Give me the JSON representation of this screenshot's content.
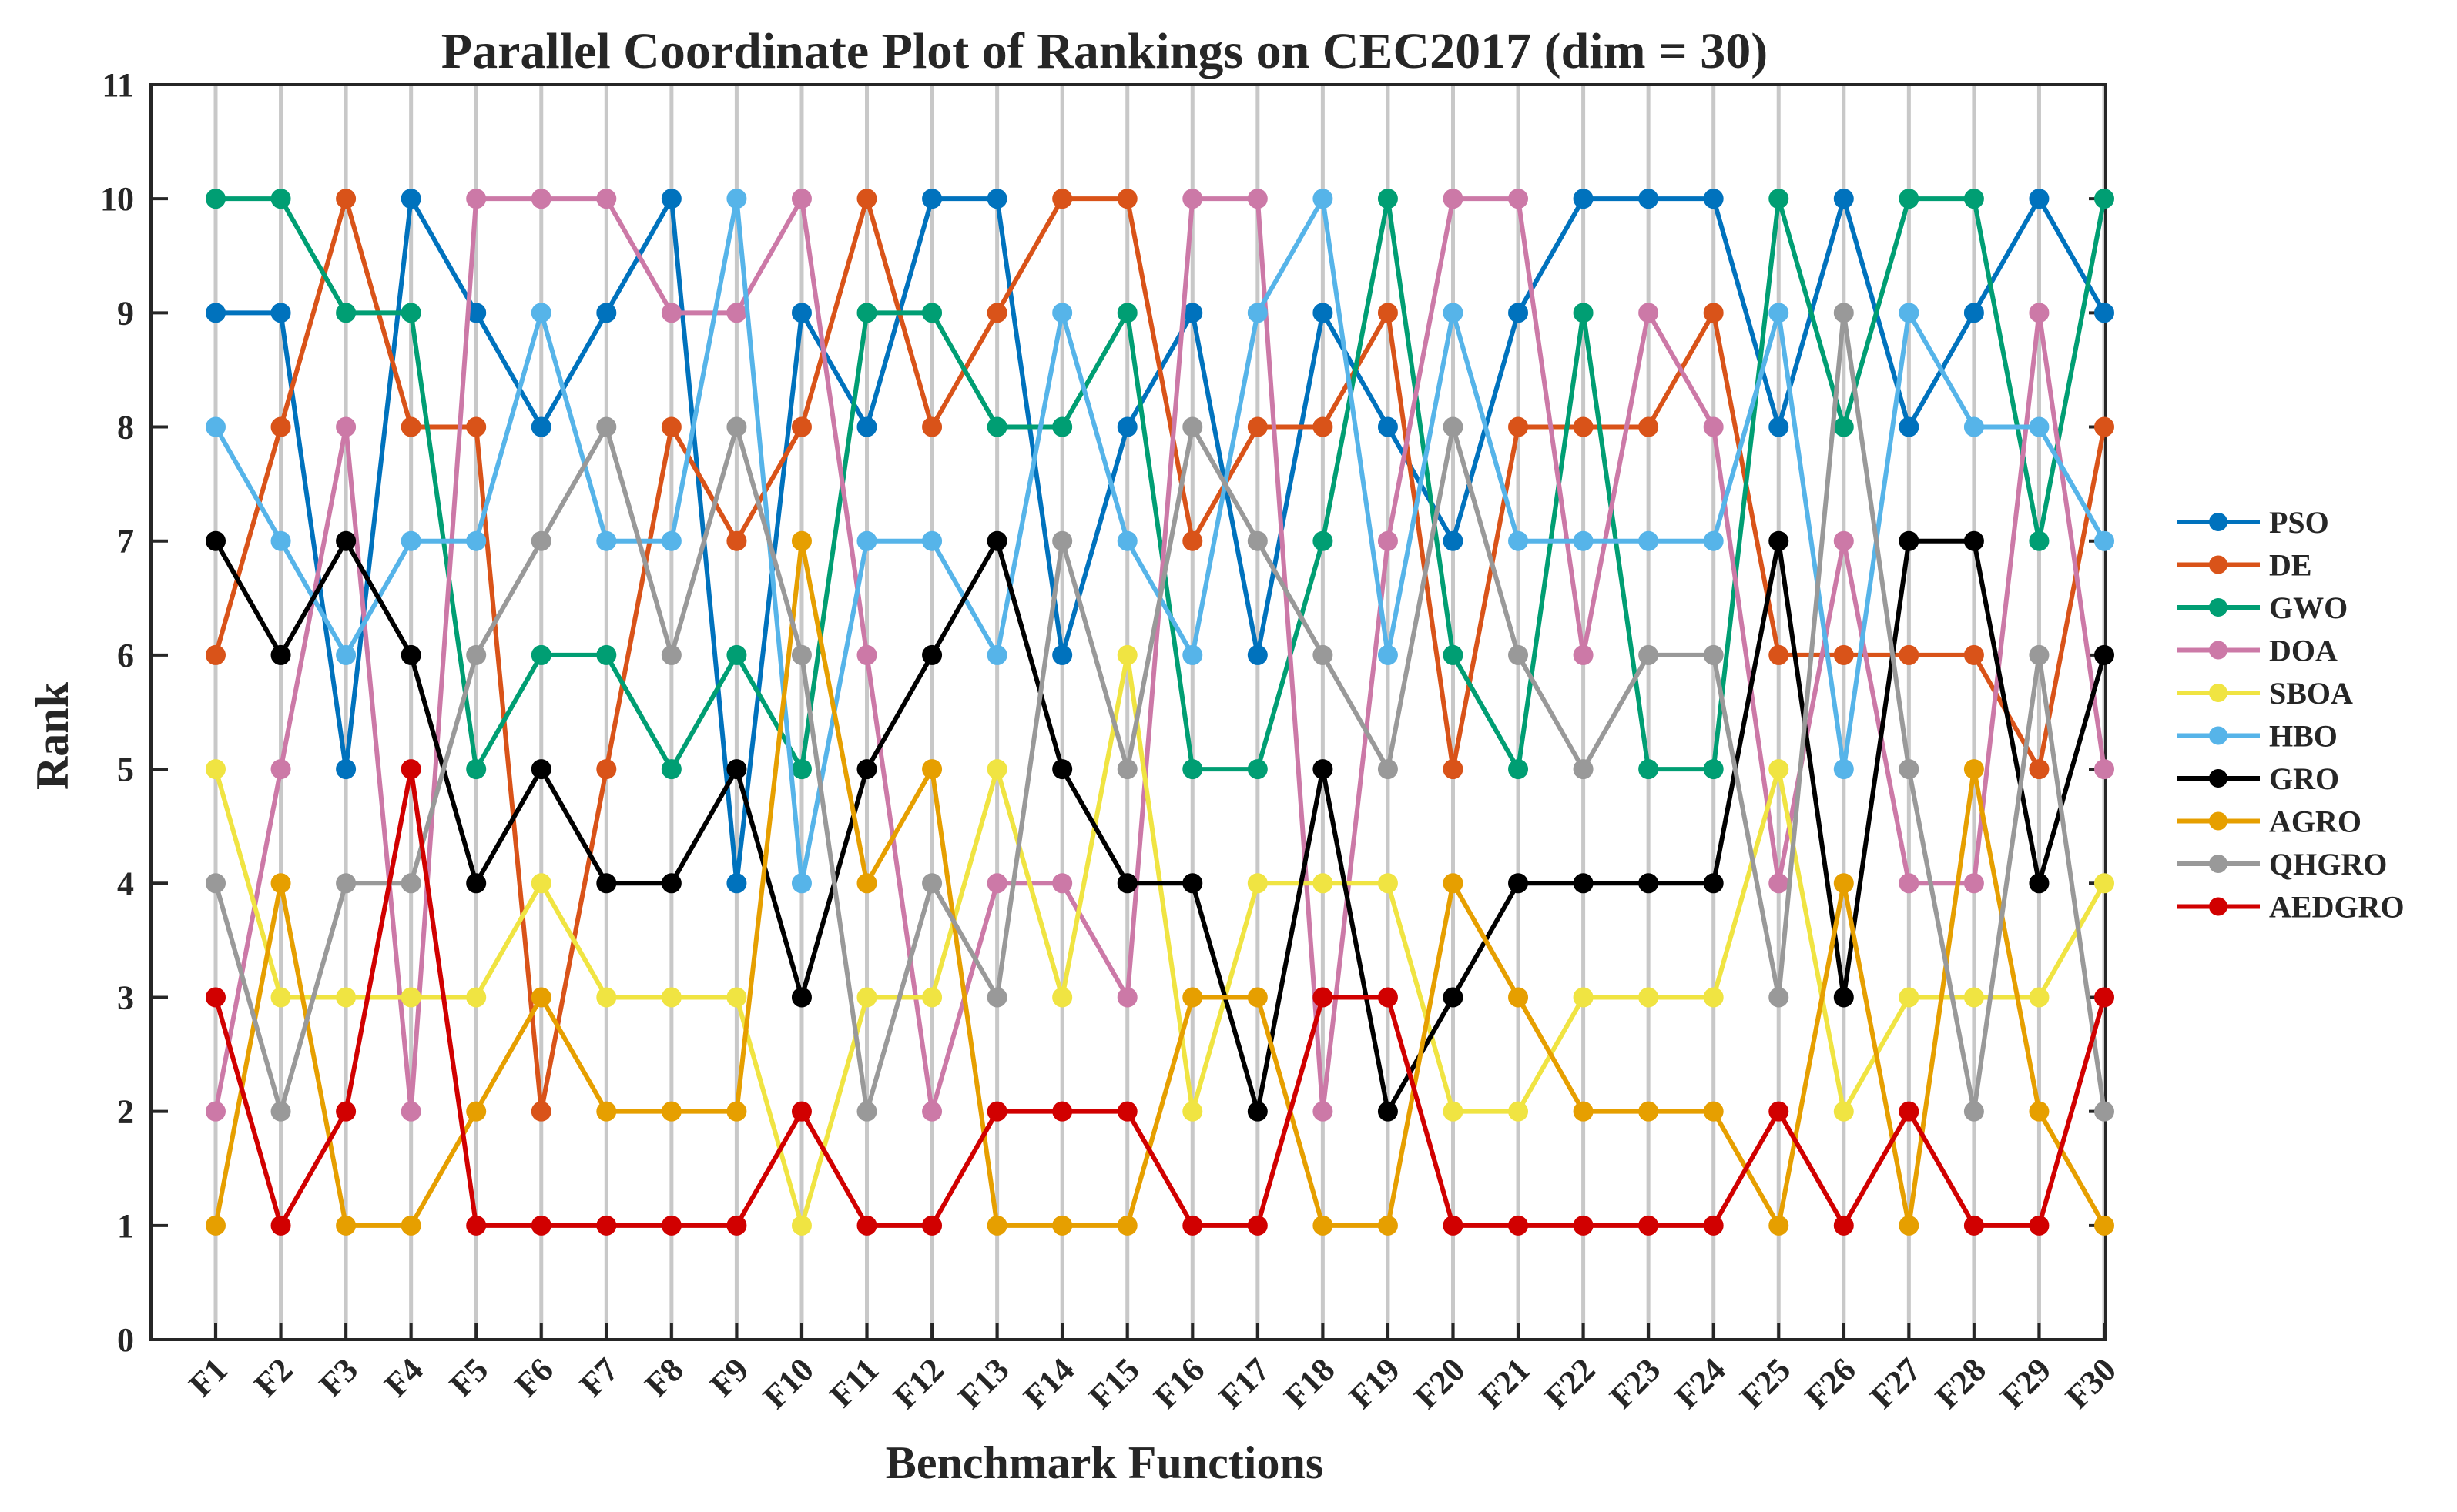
{
  "chart_data": {
    "type": "line",
    "title": "Parallel Coordinate Plot of Rankings on CEC2017 (dim = 30)",
    "xlabel": "Benchmark Functions",
    "ylabel": "Rank",
    "ylim": [
      0,
      11
    ],
    "yticks": [
      "0",
      "1",
      "2",
      "3",
      "4",
      "5",
      "6",
      "7",
      "8",
      "9",
      "10",
      "11"
    ],
    "grid": "vertical",
    "legend_position": "right",
    "categories": [
      "F1",
      "F2",
      "F3",
      "F4",
      "F5",
      "F6",
      "F7",
      "F8",
      "F9",
      "F10",
      "F11",
      "F12",
      "F13",
      "F14",
      "F15",
      "F16",
      "F17",
      "F18",
      "F19",
      "F20",
      "F21",
      "F22",
      "F23",
      "F24",
      "F25",
      "F26",
      "F27",
      "F28",
      "F29",
      "F30"
    ],
    "series": [
      {
        "name": "PSO",
        "color": "#0072BD",
        "values": [
          9,
          9,
          5,
          10,
          9,
          8,
          9,
          10,
          4,
          9,
          8,
          10,
          10,
          6,
          8,
          9,
          6,
          9,
          8,
          7,
          9,
          10,
          10,
          10,
          8,
          10,
          8,
          9,
          10,
          9
        ]
      },
      {
        "name": "DE",
        "color": "#D95319",
        "values": [
          6,
          8,
          10,
          8,
          8,
          2,
          5,
          8,
          7,
          8,
          10,
          8,
          9,
          10,
          10,
          7,
          8,
          8,
          9,
          5,
          8,
          8,
          8,
          9,
          6,
          6,
          6,
          6,
          5,
          8
        ]
      },
      {
        "name": "GWO",
        "color": "#009E73",
        "values": [
          10,
          10,
          9,
          9,
          5,
          6,
          6,
          5,
          6,
          5,
          9,
          9,
          8,
          8,
          9,
          5,
          5,
          7,
          10,
          6,
          5,
          9,
          5,
          5,
          10,
          8,
          10,
          10,
          7,
          10
        ]
      },
      {
        "name": "DOA",
        "color": "#CC79A7",
        "values": [
          2,
          5,
          8,
          2,
          10,
          10,
          10,
          9,
          9,
          10,
          6,
          2,
          4,
          4,
          3,
          10,
          10,
          2,
          7,
          10,
          10,
          6,
          9,
          8,
          4,
          7,
          4,
          4,
          9,
          5
        ]
      },
      {
        "name": "SBOA",
        "color": "#F0E442",
        "values": [
          5,
          3,
          3,
          3,
          3,
          4,
          3,
          3,
          3,
          1,
          3,
          3,
          5,
          3,
          6,
          2,
          4,
          4,
          4,
          2,
          2,
          3,
          3,
          3,
          5,
          2,
          3,
          3,
          3,
          4
        ]
      },
      {
        "name": "HBO",
        "color": "#56B4E9",
        "values": [
          8,
          7,
          6,
          7,
          7,
          9,
          7,
          7,
          10,
          4,
          7,
          7,
          6,
          9,
          7,
          6,
          9,
          10,
          6,
          9,
          7,
          7,
          7,
          7,
          9,
          5,
          9,
          8,
          8,
          7
        ]
      },
      {
        "name": "GRO",
        "color": "#000000",
        "values": [
          7,
          6,
          7,
          6,
          4,
          5,
          4,
          4,
          5,
          3,
          5,
          6,
          7,
          5,
          4,
          4,
          2,
          5,
          2,
          3,
          4,
          4,
          4,
          4,
          7,
          3,
          7,
          7,
          4,
          6
        ]
      },
      {
        "name": "AGRO",
        "color": "#E69F00",
        "values": [
          1,
          4,
          1,
          1,
          2,
          3,
          2,
          2,
          2,
          7,
          4,
          5,
          1,
          1,
          1,
          3,
          3,
          1,
          1,
          4,
          3,
          2,
          2,
          2,
          1,
          4,
          1,
          5,
          2,
          1
        ]
      },
      {
        "name": "QHGRO",
        "color": "#999999",
        "values": [
          4,
          2,
          4,
          4,
          6,
          7,
          8,
          6,
          8,
          6,
          2,
          4,
          3,
          7,
          5,
          8,
          7,
          6,
          5,
          8,
          6,
          5,
          6,
          6,
          3,
          9,
          5,
          2,
          6,
          2
        ]
      },
      {
        "name": "AEDGRO",
        "color": "#D10000",
        "values": [
          3,
          1,
          2,
          5,
          1,
          1,
          1,
          1,
          1,
          2,
          1,
          1,
          2,
          2,
          2,
          1,
          1,
          3,
          3,
          1,
          1,
          1,
          1,
          1,
          2,
          1,
          2,
          1,
          1,
          3
        ]
      }
    ]
  }
}
